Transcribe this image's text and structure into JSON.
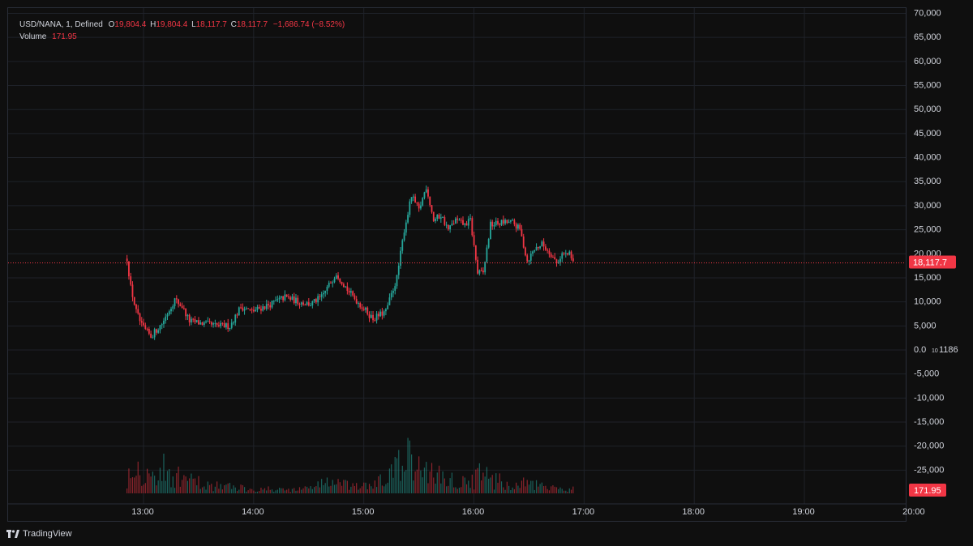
{
  "legend": {
    "symbol": "USD/NANA, 1, Defined",
    "o_label": "O",
    "o_value": "19,804.4",
    "h_label": "H",
    "h_value": "19,804.4",
    "l_label": "L",
    "l_value": "18,117.7",
    "c_label": "C",
    "c_value": "18,117.7",
    "change": "−1,686.74 (−8.52%)",
    "volume_label": "Volume",
    "volume_value": "171.95"
  },
  "price_axis": {
    "ticks": [
      "70,000",
      "65,000",
      "60,000",
      "55,000",
      "50,000",
      "45,000",
      "40,000",
      "35,000",
      "30,000",
      "25,000",
      "20,000",
      "15,000",
      "10,000",
      "5,000",
      "0.0",
      "-5,000",
      "-10,000",
      "-15,000",
      "-20,000",
      "-25,000"
    ],
    "tick_values": [
      70000,
      65000,
      60000,
      55000,
      50000,
      45000,
      40000,
      35000,
      30000,
      25000,
      20000,
      15000,
      10000,
      5000,
      0,
      -5000,
      -10000,
      -15000,
      -20000,
      -25000
    ],
    "zero_suffix": "1186",
    "last_price_label": "18,117.7",
    "last_price_value": 18117.7,
    "last_volume_label": "171.95"
  },
  "time_axis": {
    "ticks": [
      "13:00",
      "14:00",
      "15:00",
      "16:00",
      "17:00",
      "18:00",
      "19:00",
      "20:00"
    ],
    "tick_minutes": [
      0,
      60,
      120,
      180,
      240,
      300,
      360,
      420
    ]
  },
  "footer": {
    "brand": "TradingView"
  },
  "colors": {
    "up": "#26a69a",
    "down": "#f23645",
    "grid": "#1f2229",
    "background": "#0f0f0f"
  },
  "chart_data": {
    "type": "candlestick",
    "x_unit": "minutes after 13:00",
    "y_range": [
      -25000,
      70000
    ],
    "grid": true,
    "price_path": [
      {
        "t": -5,
        "p": 19000
      },
      {
        "t": -3,
        "p": 13000
      },
      {
        "t": 0,
        "p": 8000
      },
      {
        "t": 3,
        "p": 5000
      },
      {
        "t": 8,
        "p": 2800
      },
      {
        "t": 14,
        "p": 5500
      },
      {
        "t": 21,
        "p": 10500
      },
      {
        "t": 25,
        "p": 9000
      },
      {
        "t": 29,
        "p": 6000
      },
      {
        "t": 36,
        "p": 5500
      },
      {
        "t": 44,
        "p": 5000
      },
      {
        "t": 51,
        "p": 5000
      },
      {
        "t": 57,
        "p": 9000
      },
      {
        "t": 63,
        "p": 8000
      },
      {
        "t": 73,
        "p": 9500
      },
      {
        "t": 81,
        "p": 11000
      },
      {
        "t": 89,
        "p": 10000
      },
      {
        "t": 95,
        "p": 9500
      },
      {
        "t": 101,
        "p": 11000
      },
      {
        "t": 109,
        "p": 16000
      },
      {
        "t": 116,
        "p": 12000
      },
      {
        "t": 123,
        "p": 9000
      },
      {
        "t": 129,
        "p": 6500
      },
      {
        "t": 136,
        "p": 8000
      },
      {
        "t": 142,
        "p": 15000
      },
      {
        "t": 146,
        "p": 25000
      },
      {
        "t": 150,
        "p": 32000
      },
      {
        "t": 154,
        "p": 29000
      },
      {
        "t": 158,
        "p": 34000
      },
      {
        "t": 162,
        "p": 27000
      },
      {
        "t": 166,
        "p": 28000
      },
      {
        "t": 170,
        "p": 25000
      },
      {
        "t": 174,
        "p": 27000
      },
      {
        "t": 179,
        "p": 26000
      },
      {
        "t": 182,
        "p": 27000
      },
      {
        "t": 186,
        "p": 16000
      },
      {
        "t": 189,
        "p": 16000
      },
      {
        "t": 193,
        "p": 26000
      },
      {
        "t": 199,
        "p": 26500
      },
      {
        "t": 205,
        "p": 26500
      },
      {
        "t": 209,
        "p": 25000
      },
      {
        "t": 213,
        "p": 18500
      },
      {
        "t": 217,
        "p": 21000
      },
      {
        "t": 221,
        "p": 22000
      },
      {
        "t": 226,
        "p": 20000
      },
      {
        "t": 229,
        "p": 18000
      },
      {
        "t": 232,
        "p": 20000
      },
      {
        "t": 236,
        "p": 19804
      },
      {
        "t": 238,
        "p": 18117.7
      }
    ],
    "volume_path": [
      {
        "t": -5,
        "v": 40
      },
      {
        "t": -2,
        "v": 85
      },
      {
        "t": 2,
        "v": 60
      },
      {
        "t": 8,
        "v": 40
      },
      {
        "t": 14,
        "v": 60
      },
      {
        "t": 22,
        "v": 40
      },
      {
        "t": 30,
        "v": 30
      },
      {
        "t": 40,
        "v": 20
      },
      {
        "t": 55,
        "v": 15
      },
      {
        "t": 70,
        "v": 10
      },
      {
        "t": 90,
        "v": 10
      },
      {
        "t": 105,
        "v": 30
      },
      {
        "t": 118,
        "v": 15
      },
      {
        "t": 130,
        "v": 20
      },
      {
        "t": 140,
        "v": 50
      },
      {
        "t": 147,
        "v": 90
      },
      {
        "t": 152,
        "v": 60
      },
      {
        "t": 160,
        "v": 55
      },
      {
        "t": 170,
        "v": 35
      },
      {
        "t": 180,
        "v": 25
      },
      {
        "t": 187,
        "v": 45
      },
      {
        "t": 195,
        "v": 35
      },
      {
        "t": 205,
        "v": 15
      },
      {
        "t": 212,
        "v": 25
      },
      {
        "t": 225,
        "v": 12
      },
      {
        "t": 238,
        "v": 12
      }
    ]
  }
}
